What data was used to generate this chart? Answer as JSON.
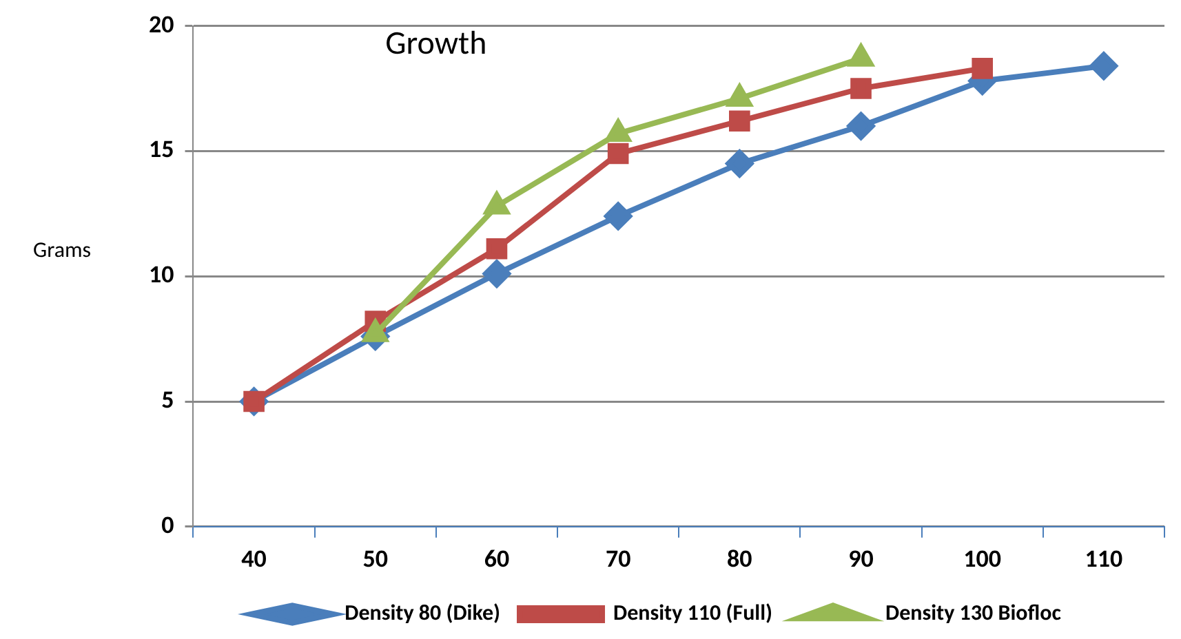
{
  "chart_data": {
    "type": "line",
    "title": "Growth",
    "ylabel": "Grams",
    "categories": [
      "40",
      "50",
      "60",
      "70",
      "80",
      "90",
      "100",
      "110"
    ],
    "series": [
      {
        "name": "Density 80 (Dike)",
        "color": "#4a7ebb",
        "marker": "diamond",
        "values": [
          5,
          7.6,
          10.1,
          12.4,
          14.5,
          16.0,
          17.8,
          18.4
        ]
      },
      {
        "name": "Density 110 (Full)",
        "color": "#be4b48",
        "marker": "square",
        "values": [
          5,
          8.2,
          11.1,
          14.9,
          16.2,
          17.5,
          18.3,
          null
        ]
      },
      {
        "name": "Density 130 Biofloc",
        "color": "#98b954",
        "marker": "triangle",
        "values": [
          null,
          7.7,
          12.8,
          15.7,
          17.1,
          18.7,
          null,
          null
        ]
      }
    ],
    "ylim": [
      0,
      20
    ],
    "yticks": [
      0,
      5,
      10,
      15,
      20
    ],
    "grid": "y",
    "legend": "bottom"
  }
}
